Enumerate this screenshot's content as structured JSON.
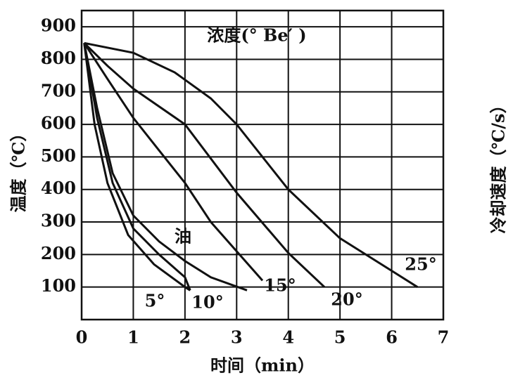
{
  "chart_data": {
    "type": "line",
    "annotation": "浓度(° Be′ )",
    "ylabel": "温度（℃）",
    "y2label": "冷却速度（℃/s）",
    "xlabel": "时间（min）",
    "xlim": [
      0,
      7
    ],
    "xticks": [
      0,
      1,
      2,
      3,
      4,
      5,
      6,
      7
    ],
    "ylim": [
      0,
      950
    ],
    "yticks": [
      100,
      200,
      300,
      400,
      500,
      600,
      700,
      800,
      900
    ],
    "grid": true,
    "series": [
      {
        "name": "5°",
        "color": "#111111",
        "x": [
          0.05,
          0.25,
          0.5,
          0.9,
          1.4,
          2.0,
          2.1
        ],
        "values": [
          850,
          600,
          420,
          260,
          170,
          100,
          90
        ]
      },
      {
        "name": "10°",
        "color": "#111111",
        "x": [
          0.05,
          0.3,
          0.6,
          1.0,
          1.5,
          2.0,
          2.1
        ],
        "values": [
          850,
          620,
          420,
          280,
          200,
          130,
          90
        ]
      },
      {
        "name": "油",
        "color": "#111111",
        "x": [
          0.05,
          0.3,
          0.6,
          1.0,
          1.5,
          2.0,
          2.5,
          3.2
        ],
        "values": [
          850,
          650,
          450,
          320,
          240,
          180,
          130,
          90
        ]
      },
      {
        "name": "15°",
        "color": "#111111",
        "x": [
          0.05,
          0.5,
          1.0,
          1.5,
          2.0,
          2.5,
          3.0,
          3.5
        ],
        "values": [
          850,
          740,
          620,
          520,
          420,
          300,
          210,
          120
        ]
      },
      {
        "name": "20°",
        "color": "#111111",
        "x": [
          0.05,
          0.5,
          1.0,
          2.0,
          3.0,
          4.0,
          4.7
        ],
        "values": [
          850,
          780,
          710,
          600,
          390,
          205,
          100
        ]
      },
      {
        "name": "25°",
        "color": "#111111",
        "x": [
          0.05,
          1.0,
          1.8,
          2.5,
          3.0,
          4.0,
          5.0,
          6.0,
          6.5
        ],
        "values": [
          850,
          820,
          760,
          680,
          600,
          400,
          250,
          150,
          100
        ]
      }
    ]
  }
}
